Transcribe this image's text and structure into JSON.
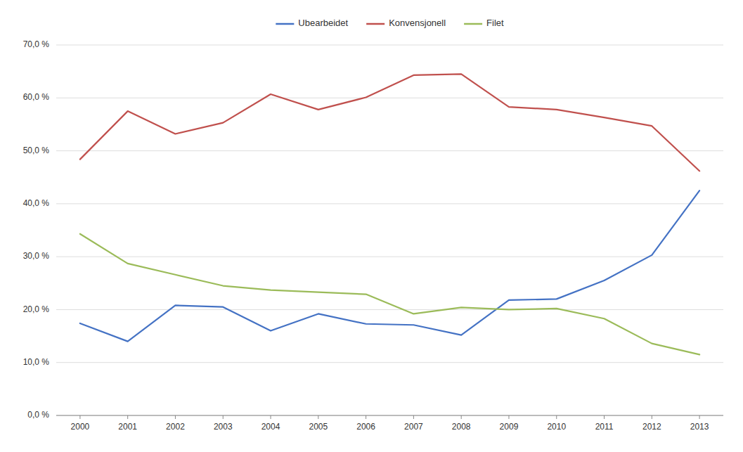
{
  "chart_data": {
    "type": "line",
    "categories": [
      "2000",
      "2001",
      "2002",
      "2003",
      "2004",
      "2005",
      "2006",
      "2007",
      "2008",
      "2009",
      "2010",
      "2011",
      "2012",
      "2013"
    ],
    "series": [
      {
        "name": "Ubearbeidet",
        "color": "#4472C4",
        "values": [
          0.174,
          0.14,
          0.208,
          0.205,
          0.16,
          0.192,
          0.173,
          0.171,
          0.152,
          0.218,
          0.22,
          0.255,
          0.303,
          0.425
        ]
      },
      {
        "name": "Konvensjonell",
        "color": "#C0504D",
        "values": [
          0.484,
          0.575,
          0.532,
          0.553,
          0.607,
          0.578,
          0.601,
          0.643,
          0.645,
          0.583,
          0.578,
          0.563,
          0.547,
          0.462
        ]
      },
      {
        "name": "Filet",
        "color": "#9BBB59",
        "values": [
          0.343,
          0.287,
          0.266,
          0.245,
          0.237,
          0.233,
          0.229,
          0.192,
          0.204,
          0.2,
          0.202,
          0.183,
          0.136,
          0.115
        ]
      }
    ],
    "ylim": [
      0.0,
      0.7
    ],
    "yticks": [
      {
        "value": 0.0,
        "label": "0,0 %"
      },
      {
        "value": 0.1,
        "label": "10,0 %"
      },
      {
        "value": 0.2,
        "label": "20,0 %"
      },
      {
        "value": 0.3,
        "label": "30,0 %"
      },
      {
        "value": 0.4,
        "label": "40,0 %"
      },
      {
        "value": 0.5,
        "label": "50,0 %"
      },
      {
        "value": 0.6,
        "label": "60,0 %"
      },
      {
        "value": 0.7,
        "label": "70,0 %"
      }
    ],
    "grid": true,
    "legend": "top"
  }
}
